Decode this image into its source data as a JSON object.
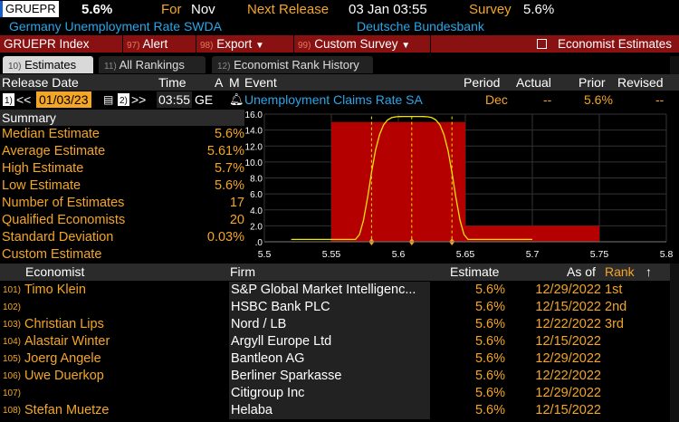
{
  "header": {
    "ticker": "GRUEPR",
    "value": "5.6%",
    "for_label": "For",
    "for_value": "Nov",
    "next_release_label": "Next Release",
    "next_release_value": "03 Jan 03:55",
    "survey_label": "Survey",
    "survey_value": "5.6%",
    "description": "Germany Unemployment Rate SWDA",
    "source": "Deutsche Bundesbank"
  },
  "toolbar": {
    "index_label": "GRUEPR Index",
    "alert_num": "97)",
    "alert_label": "Alert",
    "export_num": "98)",
    "export_label": "Export",
    "survey_num": "99)",
    "survey_label": "Custom Survey",
    "economist_label": "Economist Estimates"
  },
  "tabs": [
    {
      "num": "10)",
      "label": "Estimates"
    },
    {
      "num": "11)",
      "label": "All Rankings"
    },
    {
      "num": "12)",
      "label": "Economist Rank History"
    }
  ],
  "release": {
    "headers": {
      "date": "Release Date",
      "time": "Time",
      "a": "A",
      "m": "M",
      "event": "Event",
      "period": "Period",
      "actual": "Actual",
      "prior": "Prior",
      "revised": "Revised"
    },
    "nav_prev": "1)",
    "prev_arrows": "<<",
    "date": "01/03/23",
    "nav_next": "2)",
    "next_arrows": ">>",
    "time": "03:55",
    "ge": "GE",
    "event": "Unemployment Claims Rate SA",
    "period": "Dec",
    "actual": "--",
    "prior": "5.6%",
    "revised": "--"
  },
  "summary": {
    "title": "Summary",
    "rows": [
      {
        "label": "Median Estimate",
        "value": "5.6%"
      },
      {
        "label": "Average Estimate",
        "value": "5.61%"
      },
      {
        "label": "High Estimate",
        "value": "5.7%"
      },
      {
        "label": "Low Estimate",
        "value": "5.6%"
      },
      {
        "label": "Number of Estimates",
        "value": "17"
      },
      {
        "label": "Qualified Economists",
        "value": "20"
      },
      {
        "label": "Standard Deviation",
        "value": "0.03%"
      },
      {
        "label": "Custom Estimate",
        "value": ""
      }
    ]
  },
  "chart_data": {
    "type": "bar",
    "bins": [
      {
        "from": 5.55,
        "to": 5.65,
        "count": 15
      },
      {
        "from": 5.65,
        "to": 5.75,
        "count": 2
      }
    ],
    "curve_color": "#f2e600",
    "bar_color": "#b50000",
    "xlim": [
      5.5,
      5.8
    ],
    "ylim": [
      0,
      16
    ],
    "x_ticks": [
      "5.5",
      "5.55",
      "5.6",
      "5.65",
      "5.7",
      "5.75",
      "5.8"
    ],
    "y_ticks": [
      "16.0",
      "14.0",
      "12.0",
      "10.0",
      "8.0",
      "6.0",
      "4.0",
      "2.0",
      ".0"
    ],
    "markers": [
      5.58,
      5.61,
      5.64
    ]
  },
  "economists": {
    "headers": {
      "economist": "Economist",
      "firm": "Firm",
      "estimate": "Estimate",
      "asof": "As of",
      "rank": "Rank"
    },
    "rows": [
      {
        "idx": "101)",
        "name": "Timo Klein",
        "firm": "S&P Global Market Intelligenc...",
        "estimate": "5.6%",
        "asof": "12/29/2022",
        "rank": "1st"
      },
      {
        "idx": "102)",
        "name": "",
        "firm": "HSBC Bank PLC",
        "estimate": "5.6%",
        "asof": "12/15/2022",
        "rank": "2nd"
      },
      {
        "idx": "103)",
        "name": "Christian Lips",
        "firm": "Nord / LB",
        "estimate": "5.6%",
        "asof": "12/22/2022",
        "rank": "3rd"
      },
      {
        "idx": "104)",
        "name": "Alastair Winter",
        "firm": "Argyll Europe Ltd",
        "estimate": "5.6%",
        "asof": "12/15/2022",
        "rank": ""
      },
      {
        "idx": "105)",
        "name": "Joerg Angele",
        "firm": "Bantleon AG",
        "estimate": "5.6%",
        "asof": "12/29/2022",
        "rank": ""
      },
      {
        "idx": "106)",
        "name": "Uwe Duerkop",
        "firm": "Berliner Sparkasse",
        "estimate": "5.6%",
        "asof": "12/22/2022",
        "rank": ""
      },
      {
        "idx": "107)",
        "name": "",
        "firm": "Citigroup Inc",
        "estimate": "5.6%",
        "asof": "12/29/2022",
        "rank": ""
      },
      {
        "idx": "108)",
        "name": "Stefan Muetze",
        "firm": "Helaba",
        "estimate": "5.6%",
        "asof": "12/15/2022",
        "rank": ""
      }
    ]
  }
}
